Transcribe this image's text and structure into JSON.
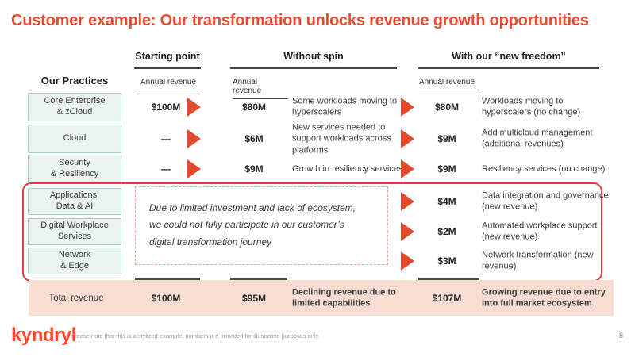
{
  "title": "Customer example: Our transformation unlocks revenue growth opportunities",
  "header": {
    "practices_label": "Our Practices",
    "groups": [
      {
        "label": "Starting point",
        "sublabel": "Annual revenue"
      },
      {
        "label": "Without spin",
        "sublabel": "Annual revenue"
      },
      {
        "label": "With our “new freedom”",
        "sublabel": "Annual revenue"
      }
    ]
  },
  "rows": [
    {
      "practice": "Core Enterprise\n& zCloud",
      "starting": "$100M",
      "without_value": "$80M",
      "without_desc": "Some workloads moving to hyperscalers",
      "with_value": "$80M",
      "with_desc": "Workloads moving to hyperscalers (no change)"
    },
    {
      "practice": "Cloud",
      "starting": "—",
      "without_value": "$6M",
      "without_desc": "New services needed to support workloads across platforms",
      "with_value": "$9M",
      "with_desc": "Add multicloud management (additional revenues)"
    },
    {
      "practice": "Security\n& Resiliency",
      "starting": "—",
      "without_value": "$9M",
      "without_desc": "Growth in resiliency services",
      "with_value": "$9M",
      "with_desc": "Resiliency services\n(no change)"
    },
    {
      "practice": "Applications,\nData & AI",
      "with_value": "$4M",
      "with_desc": "Data integration and governance (new revenue)"
    },
    {
      "practice": "Digital Workplace\nServices",
      "with_value": "$2M",
      "with_desc": "Automated workplace support (new revenue)"
    },
    {
      "practice": "Network\n& Edge",
      "with_value": "$3M",
      "with_desc": "Network transformation (new revenue)"
    }
  ],
  "highlight_note": "Due to limited investment and lack of ecosystem,\nwe could not fully participate in our customer’s\ndigital transformation journey",
  "total": {
    "label": "Total revenue",
    "starting": "$100M",
    "without_value": "$95M",
    "without_desc": "Declining revenue due to limited capabilities",
    "with_value": "$107M",
    "with_desc": "Growing revenue due to entry into full market ecosystem"
  },
  "footer": {
    "logo": "kyndryl",
    "note": "Please note that this is a stylized example; numbers are provided for illustrative purposes only",
    "page": "8"
  },
  "colors": {
    "brand_red": "#FF462D",
    "title_red": "#EB4A2C",
    "arrow_red": "#E04A2D",
    "highlight_border_red": "#E8393C",
    "note_dash_salmon": "#F0A28E",
    "practice_box_bg": "#E9F4EF",
    "practice_box_border": "#A6CEC0",
    "total_row_bg": "#F9DCD2"
  }
}
